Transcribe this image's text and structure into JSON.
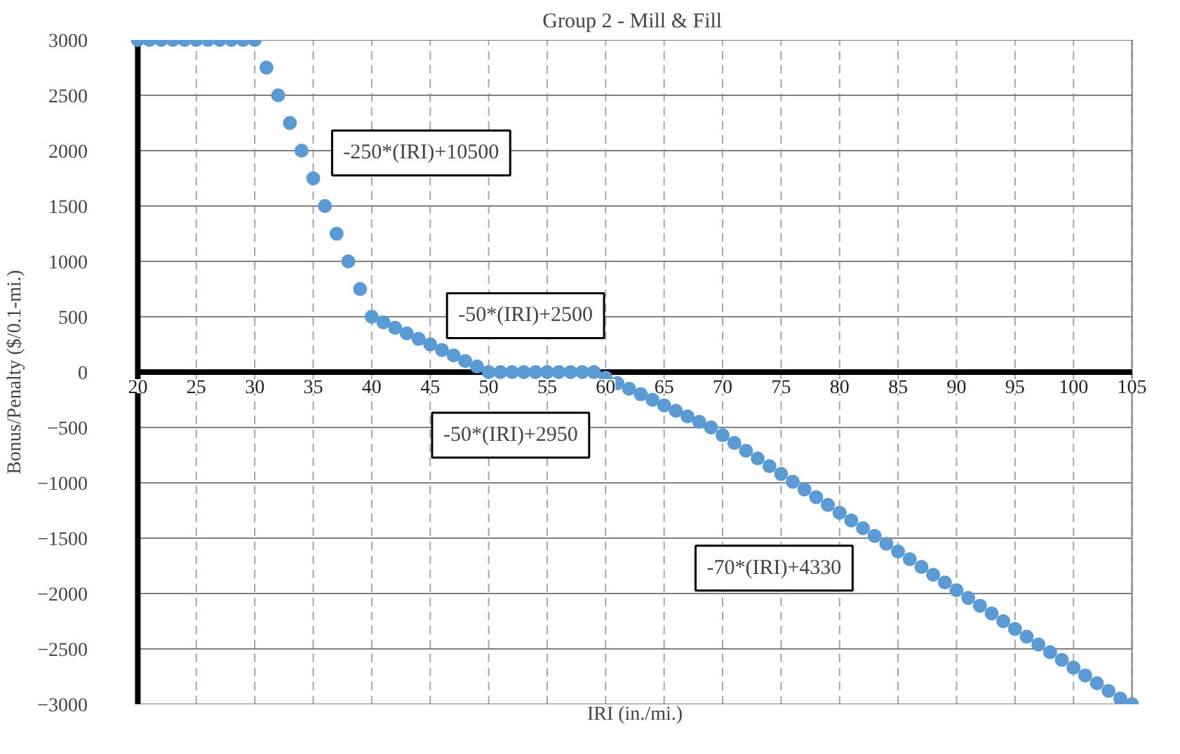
{
  "chart_data": {
    "type": "scatter",
    "title": "Group 2 - Mill  & Fill",
    "xlabel": "IRI (in./mi.)",
    "ylabel": "Bonus/Penalty ($/0.1-mi.)",
    "x": [
      20,
      21,
      22,
      23,
      24,
      25,
      26,
      27,
      28,
      29,
      30,
      31,
      32,
      33,
      34,
      35,
      36,
      37,
      38,
      39,
      40,
      41,
      42,
      43,
      44,
      45,
      46,
      47,
      48,
      49,
      50,
      51,
      52,
      53,
      54,
      55,
      56,
      57,
      58,
      59,
      60,
      61,
      62,
      63,
      64,
      65,
      66,
      67,
      68,
      69,
      70,
      71,
      72,
      73,
      74,
      75,
      76,
      77,
      78,
      79,
      80,
      81,
      82,
      83,
      84,
      85,
      86,
      87,
      88,
      89,
      90,
      91,
      92,
      93,
      94,
      95,
      96,
      97,
      98,
      99,
      100,
      101,
      102,
      103,
      104,
      105
    ],
    "series": [
      {
        "color": "#5b9bd5",
        "values": [
          3000,
          3000,
          3000,
          3000,
          3000,
          3000,
          3000,
          3000,
          3000,
          3000,
          3000,
          2750,
          2500,
          2250,
          2000,
          1750,
          1500,
          1250,
          1000,
          750,
          500,
          450,
          400,
          350,
          300,
          250,
          200,
          150,
          100,
          50,
          0,
          0,
          0,
          0,
          0,
          0,
          0,
          0,
          0,
          0,
          -50,
          -100,
          -150,
          -200,
          -250,
          -300,
          -350,
          -400,
          -450,
          -500,
          -570,
          -640,
          -710,
          -780,
          -850,
          -920,
          -990,
          -1060,
          -1130,
          -1200,
          -1270,
          -1340,
          -1410,
          -1480,
          -1550,
          -1620,
          -1690,
          -1760,
          -1830,
          -1900,
          -1970,
          -2040,
          -2110,
          -2180,
          -2250,
          -2320,
          -2390,
          -2460,
          -2530,
          -2600,
          -2670,
          -2740,
          -2810,
          -2880,
          -2950,
          -3000
        ]
      }
    ],
    "xlim": [
      20,
      105
    ],
    "xticks": [
      20,
      25,
      30,
      35,
      40,
      45,
      50,
      55,
      60,
      65,
      70,
      75,
      80,
      85,
      90,
      95,
      100,
      105
    ],
    "ylim": [
      -3000,
      3000
    ],
    "yticks": [
      -3000,
      -2500,
      -2000,
      -1500,
      -1000,
      -500,
      0,
      500,
      1000,
      1500,
      2000,
      2500,
      3000
    ],
    "grid": true,
    "marker": "circle",
    "annotations": [
      "-250*(IRI)+10500",
      "-50*(IRI)+2500",
      "-50*(IRI)+2950",
      "-70*(IRI)+4330"
    ]
  }
}
